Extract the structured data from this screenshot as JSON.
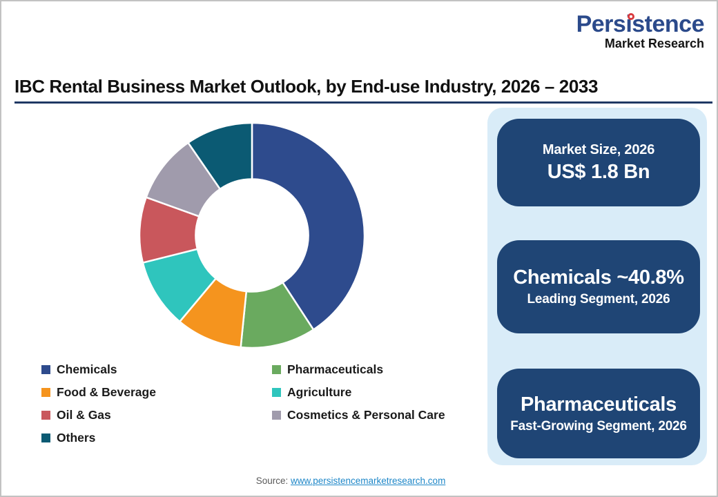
{
  "logo": {
    "brand": "Persistence",
    "tagline": "Market Research",
    "brand_color": "#2b4a8b",
    "dot_color": "#d93a3e"
  },
  "header": {
    "title": "IBC Rental Business Market Outlook, by End-use Industry, 2026 – 2033",
    "underline_color": "#1f3864"
  },
  "chart_data": {
    "type": "pie",
    "subtype": "donut",
    "title": "IBC Rental Business Market Outlook, by End-use Industry, 2026 – 2033",
    "categories": [
      "Chemicals",
      "Pharmaceuticals",
      "Food & Beverage",
      "Agriculture",
      "Oil & Gas",
      "Cosmetics & Personal Care",
      "Others"
    ],
    "values": [
      40.8,
      10.8,
      9.5,
      10.0,
      9.4,
      9.9,
      9.6
    ],
    "colors": [
      "#2e4b8d",
      "#6aaa5f",
      "#f5941e",
      "#2fc5bd",
      "#c9575c",
      "#a09bac",
      "#0b5a73"
    ],
    "unit": "percent share",
    "estimation_note": "Only Chemicals ~40.8% is labeled on the image; other shares estimated from arc angles",
    "start_angle_deg": 0,
    "direction": "clockwise",
    "donut_hole_ratio": 0.5,
    "data_labels": false,
    "legend_position": "bottom-left"
  },
  "panel": {
    "background": "#d9ecf8",
    "box_color": "#1f4575",
    "boxes": [
      {
        "line1": "Market Size, 2026",
        "line2": "US$ 1.8 Bn"
      },
      {
        "line1": "Chemicals ~40.8%",
        "line2": "Leading Segment, 2026"
      },
      {
        "line1": "Pharmaceuticals",
        "line2": "Fast-Growing Segment, 2026"
      }
    ]
  },
  "footer": {
    "source_label": "Source:",
    "source_link": "www.persistencemarketresearch.com",
    "link_color": "#1e87c8"
  }
}
